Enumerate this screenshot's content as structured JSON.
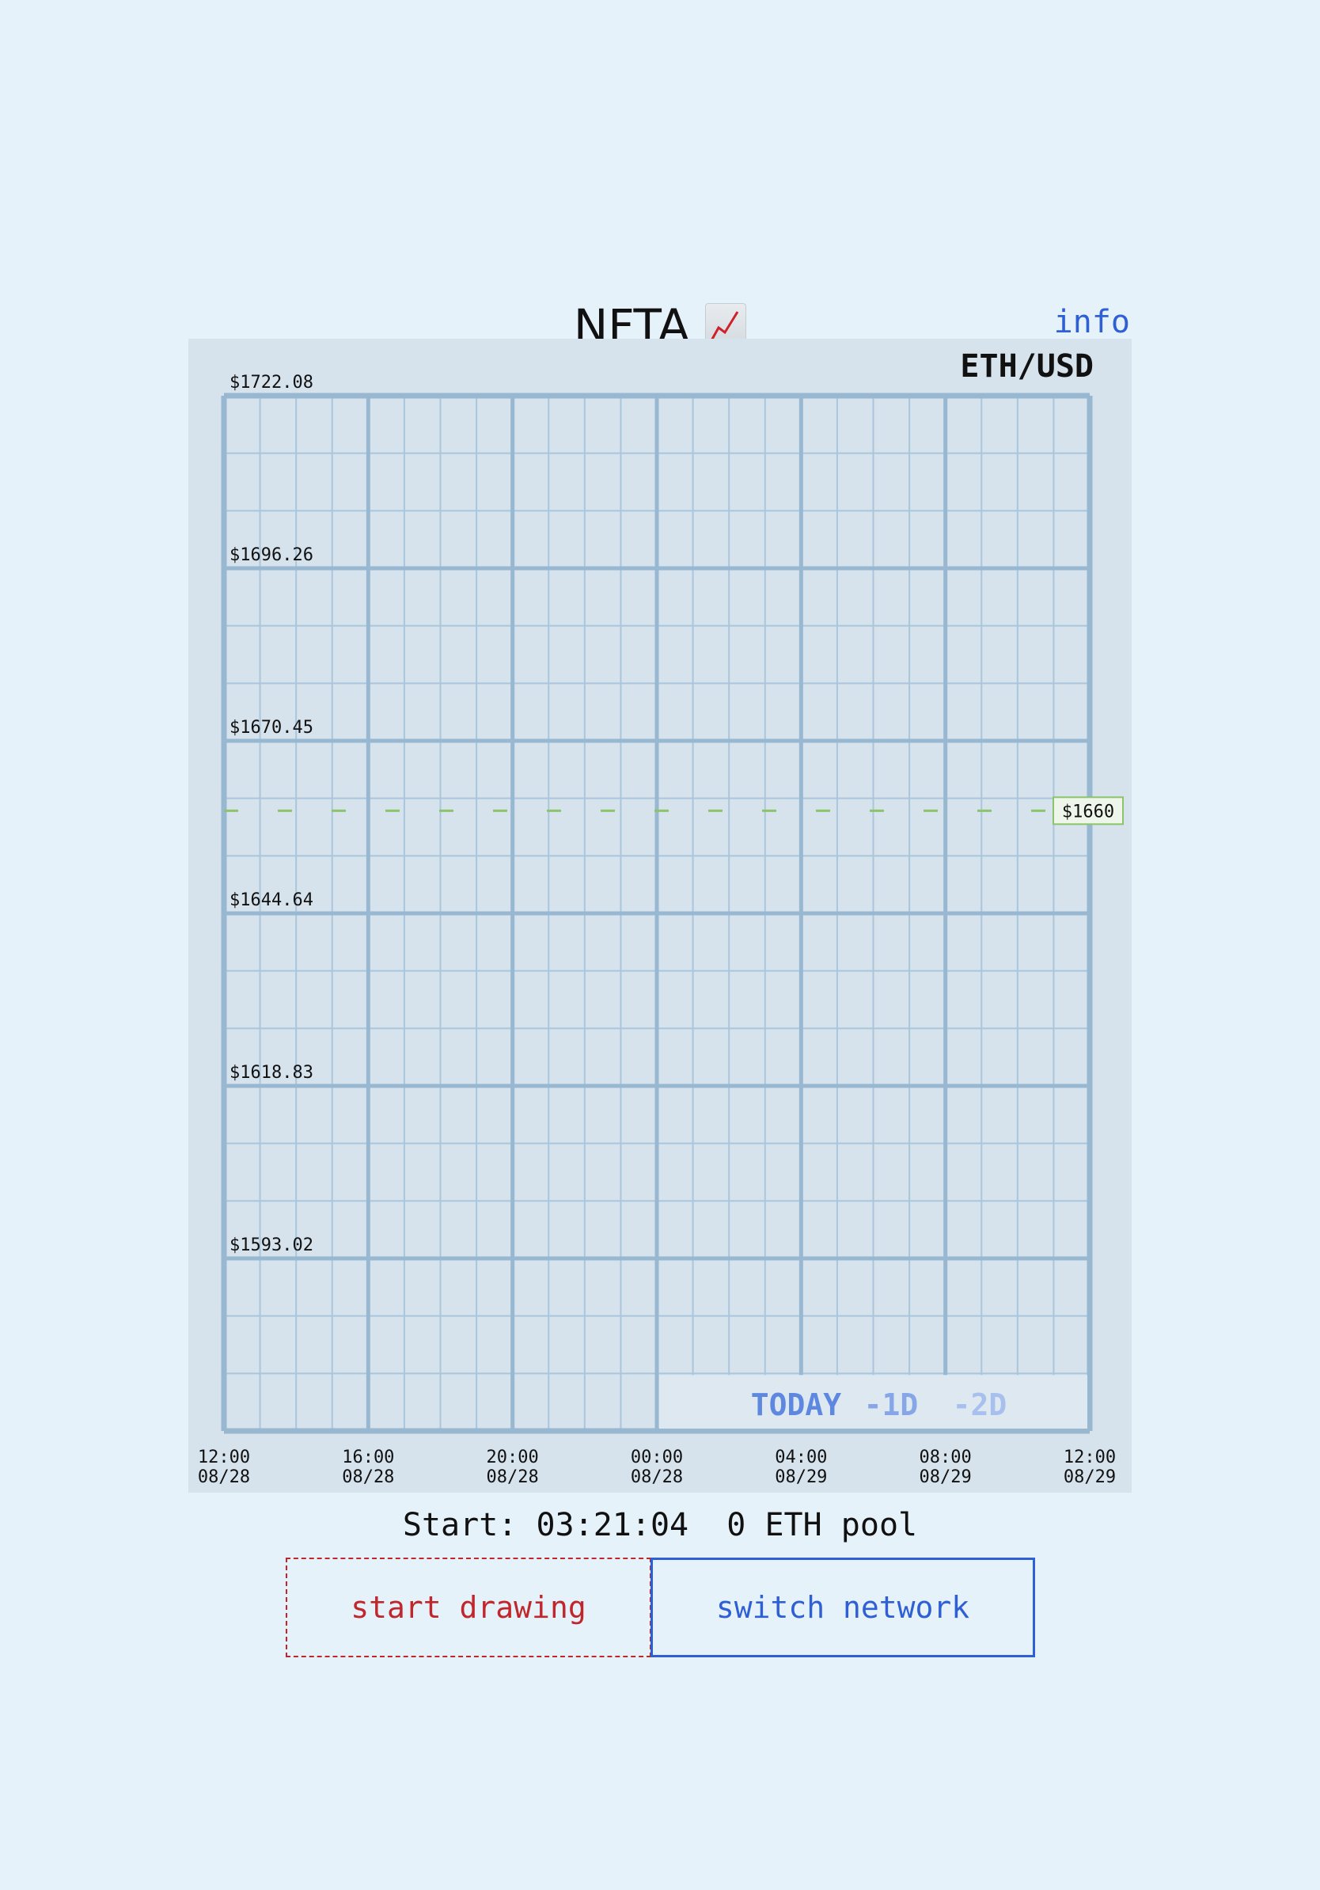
{
  "app": {
    "title": "NFTA",
    "title_icon": "chart-increasing-icon",
    "info_label": "info"
  },
  "chart_data": {
    "type": "line",
    "title": "ETH/USD",
    "y_ticks": [
      "$1722.08",
      "$1696.26",
      "$1670.45",
      "$1644.64",
      "$1618.83",
      "$1593.02"
    ],
    "y_tick_values": [
      1722.08,
      1696.26,
      1670.45,
      1644.64,
      1618.83,
      1593.02
    ],
    "ylim": [
      1567.21,
      1722.08
    ],
    "x_ticks": [
      {
        "time": "12:00",
        "date": "08/28"
      },
      {
        "time": "16:00",
        "date": "08/28"
      },
      {
        "time": "20:00",
        "date": "08/28"
      },
      {
        "time": "00:00",
        "date": "08/28"
      },
      {
        "time": "04:00",
        "date": "08/29"
      },
      {
        "time": "08:00",
        "date": "08/29"
      },
      {
        "time": "12:00",
        "date": "08/29"
      }
    ],
    "reference_line": {
      "value": 1660,
      "label": "$1660",
      "color": "#8cc46a",
      "style": "dashed"
    },
    "grid": true,
    "series": []
  },
  "range_selector": {
    "options": [
      "TODAY",
      "-1D",
      "-2D"
    ],
    "selected": "TODAY"
  },
  "stats": {
    "start_label": "Start:",
    "start_time": "03:21:04",
    "pool": "0 ETH pool"
  },
  "buttons": {
    "start": "start drawing",
    "switch": "switch network"
  },
  "colors": {
    "background": "#e6f2fa",
    "panel": "#d6e2ec",
    "grid_major": "#98b8d2",
    "grid_minor": "#a9c6dc",
    "link": "#2f5fd4",
    "danger": "#c0272d",
    "reference": "#8cc46a"
  }
}
